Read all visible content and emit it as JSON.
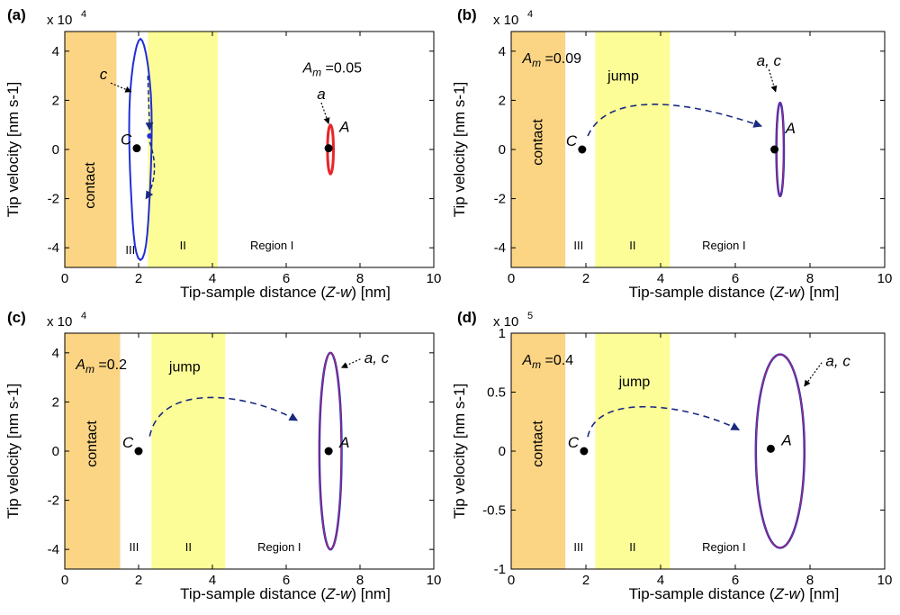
{
  "chart_data": [
    {
      "type": "scatter",
      "panel_label": "(a)",
      "xlabel_pre": "Tip-sample distance (",
      "xlabel_ital": "Z-w",
      "xlabel_post": ") [nm]",
      "ylabel": "Tip velocity [nm s-1]",
      "exponent_base": "x 10",
      "exponent_power": "4",
      "xlim": [
        0,
        10
      ],
      "ylim": [
        -4.8,
        4.8
      ],
      "xticks": [
        0,
        2,
        4,
        6,
        8,
        10
      ],
      "yticks": [
        4,
        2,
        0,
        -2,
        -4
      ],
      "ytick_labels": [
        "4",
        "2",
        "0",
        "-2",
        "-4"
      ],
      "regions": {
        "contact": [
          0,
          1.4
        ],
        "III": [
          1.4,
          2.25
        ],
        "II": [
          2.25,
          4.15
        ],
        "I": [
          4.15,
          10
        ]
      },
      "region_labels": {
        "contact": "contact",
        "III": "III",
        "II": "II",
        "I": "Region I"
      },
      "am_label": "A",
      "am_sub": "m",
      "am_value": " =0.05",
      "jump_label": "",
      "points": [
        {
          "name": "C",
          "x": 1.95,
          "y": 0.05
        },
        {
          "name": "A",
          "x": 7.15,
          "y": 0.05
        }
      ],
      "orbits": [
        {
          "name": "c",
          "cx": 2.05,
          "cy": 0,
          "rx": 0.3,
          "ry": 4.5,
          "color": "#1f2ed6"
        },
        {
          "name": "a",
          "cx": 7.2,
          "cy": 0,
          "rx": 0.08,
          "ry": 1.0,
          "color": "#e8262a"
        }
      ],
      "orbit_labels": [
        {
          "text": "c",
          "x": 1.05,
          "y": 2.85
        },
        {
          "text": "a",
          "x": 6.95,
          "y": 2.05
        }
      ]
    },
    {
      "type": "scatter",
      "panel_label": "(b)",
      "xlabel_pre": "Tip-sample distance (",
      "xlabel_ital": "Z-w",
      "xlabel_post": ") [nm]",
      "ylabel": "Tip velocity [nm s-1]",
      "exponent_base": "x 10",
      "exponent_power": "4",
      "xlim": [
        0,
        10
      ],
      "ylim": [
        -4.8,
        4.8
      ],
      "xticks": [
        0,
        2,
        4,
        6,
        8,
        10
      ],
      "yticks": [
        4,
        2,
        0,
        -2,
        -4
      ],
      "ytick_labels": [
        "4",
        "2",
        "0",
        "-2",
        "-4"
      ],
      "regions": {
        "contact": [
          0,
          1.45
        ],
        "III": [
          1.45,
          2.25
        ],
        "II": [
          2.25,
          4.25
        ],
        "I": [
          4.25,
          10
        ]
      },
      "region_labels": {
        "contact": "contact",
        "III": "III",
        "II": "II",
        "I": "Region I"
      },
      "am_label": "A",
      "am_sub": "m",
      "am_value": " =0.09",
      "jump_label": "jump",
      "points": [
        {
          "name": "C",
          "x": 1.9,
          "y": 0.0
        },
        {
          "name": "A",
          "x": 7.05,
          "y": 0.0
        }
      ],
      "orbits": [
        {
          "name": "a, c",
          "cx": 7.2,
          "cy": 0,
          "rx": 0.1,
          "ry": 1.9,
          "color": "#1f2ed6"
        }
      ],
      "orbit_labels": [
        {
          "text": "a, c",
          "x": 6.9,
          "y": 3.4
        }
      ]
    },
    {
      "type": "scatter",
      "panel_label": "(c)",
      "xlabel_pre": "Tip-sample distance (",
      "xlabel_ital": "Z-w",
      "xlabel_post": ") [nm]",
      "ylabel": "Tip velocity [nm s-1]",
      "exponent_base": "x 10",
      "exponent_power": "4",
      "xlim": [
        0,
        10
      ],
      "ylim": [
        -4.8,
        4.8
      ],
      "xticks": [
        0,
        2,
        4,
        6,
        8,
        10
      ],
      "yticks": [
        4,
        2,
        0,
        -2,
        -4
      ],
      "ytick_labels": [
        "4",
        "2",
        "0",
        "-2",
        "-4"
      ],
      "regions": {
        "contact": [
          0,
          1.5
        ],
        "III": [
          1.5,
          2.35
        ],
        "II": [
          2.35,
          4.35
        ],
        "I": [
          4.35,
          10
        ]
      },
      "region_labels": {
        "contact": "contact",
        "III": "III",
        "II": "II",
        "I": "Region I"
      },
      "am_label": "A",
      "am_sub": "m",
      "am_value": " =0.2",
      "jump_label": "jump",
      "points": [
        {
          "name": "C",
          "x": 2.0,
          "y": 0.0
        },
        {
          "name": "A",
          "x": 7.15,
          "y": 0.0
        }
      ],
      "orbits": [
        {
          "name": "a, c",
          "cx": 7.2,
          "cy": 0,
          "rx": 0.3,
          "ry": 4.0,
          "color": "#1f2ed6"
        }
      ],
      "orbit_labels": [
        {
          "text": "a, c",
          "x": 8.45,
          "y": 3.6
        }
      ]
    },
    {
      "type": "scatter",
      "panel_label": "(d)",
      "xlabel_pre": "Tip-sample distance (",
      "xlabel_ital": "Z-w",
      "xlabel_post": ") [nm]",
      "ylabel": "Tip velocity [nm s-1]",
      "exponent_base": "x 10",
      "exponent_power": "5",
      "xlim": [
        0,
        10
      ],
      "ylim": [
        -1,
        1
      ],
      "xticks": [
        0,
        2,
        4,
        6,
        8,
        10
      ],
      "yticks": [
        1,
        0.5,
        0,
        -0.5,
        -1
      ],
      "ytick_labels": [
        "1",
        "0.5",
        "0",
        "-0.5",
        "-1"
      ],
      "regions": {
        "contact": [
          0,
          1.45
        ],
        "III": [
          1.45,
          2.25
        ],
        "II": [
          2.25,
          4.25
        ],
        "I": [
          4.25,
          10
        ]
      },
      "region_labels": {
        "contact": "contact",
        "III": "III",
        "II": "II",
        "I": "Region I"
      },
      "am_label": "A",
      "am_sub": "m",
      "am_value": " =0.4",
      "jump_label": "jump",
      "points": [
        {
          "name": "C",
          "x": 1.95,
          "y": 0.0
        },
        {
          "name": "A",
          "x": 6.95,
          "y": 0.02
        }
      ],
      "orbits": [
        {
          "name": "a, c",
          "cx": 7.2,
          "cy": 0,
          "rx": 0.65,
          "ry": 0.82,
          "color": "#1f2ed6"
        }
      ],
      "orbit_labels": [
        {
          "text": "a, c",
          "x": 8.75,
          "y": 0.72
        }
      ]
    }
  ]
}
